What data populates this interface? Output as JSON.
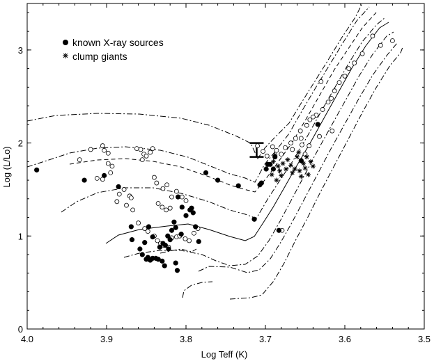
{
  "chart_data": {
    "type": "scatter",
    "title": "",
    "xlabel": "Log Teff (K)",
    "ylabel": "Log (L/Lo)",
    "xlim": [
      4.0,
      3.5
    ],
    "ylim": [
      0,
      3.5
    ],
    "x_reversed": true,
    "grid": false,
    "legend_position": "top-left",
    "xticks": [
      "4.0",
      "3.9",
      "3.8",
      "3.7",
      "3.6",
      "3.5"
    ],
    "xtick_values": [
      4.0,
      3.9,
      3.8,
      3.7,
      3.6,
      3.5
    ],
    "yticks": [
      "0",
      "1",
      "2",
      "3"
    ],
    "ytick_values": [
      0,
      1,
      2,
      3
    ],
    "legend": {
      "xray_label": "known X-ray sources",
      "clump_label": "clump giants"
    },
    "error_bar": {
      "x": 3.711,
      "y_low": 1.85,
      "y_high": 2.0
    },
    "series": [
      {
        "name": "known X-ray sources",
        "marker": "filled-circle",
        "points": [
          [
            3.988,
            1.71
          ],
          [
            3.928,
            1.6
          ],
          [
            3.885,
            1.53
          ],
          [
            3.903,
            1.65
          ],
          [
            3.869,
            1.1
          ],
          [
            3.868,
            0.96
          ],
          [
            3.858,
            0.86
          ],
          [
            3.855,
            0.8
          ],
          [
            3.852,
            0.93
          ],
          [
            3.85,
            0.75
          ],
          [
            3.848,
            0.77
          ],
          [
            3.845,
            0.74
          ],
          [
            3.842,
            0.76
          ],
          [
            3.838,
            0.76
          ],
          [
            3.835,
            0.75
          ],
          [
            3.83,
            0.73
          ],
          [
            3.833,
            0.88
          ],
          [
            3.829,
            0.92
          ],
          [
            3.826,
            0.9
          ],
          [
            3.822,
            0.86
          ],
          [
            3.827,
            0.68
          ],
          [
            3.82,
            0.96
          ],
          [
            3.823,
            1.0
          ],
          [
            3.818,
            1.06
          ],
          [
            3.815,
            1.15
          ],
          [
            3.813,
            1.09
          ],
          [
            3.813,
            0.71
          ],
          [
            3.811,
            0.63
          ],
          [
            3.81,
            1.42
          ],
          [
            3.805,
            1.31
          ],
          [
            3.806,
            1.02
          ],
          [
            3.8,
            1.22
          ],
          [
            3.795,
            1.28
          ],
          [
            3.793,
            1.3
          ],
          [
            3.791,
            1.25
          ],
          [
            3.788,
            1.1
          ],
          [
            3.784,
            0.94
          ],
          [
            3.847,
            1.1
          ],
          [
            3.842,
            0.99
          ],
          [
            3.775,
            1.68
          ],
          [
            3.76,
            1.6
          ],
          [
            3.734,
            1.54
          ],
          [
            3.714,
            1.18
          ],
          [
            3.707,
            1.55
          ],
          [
            3.705,
            1.57
          ],
          [
            3.697,
            1.77
          ],
          [
            3.699,
            1.72
          ],
          [
            3.694,
            1.77
          ],
          [
            3.69,
            1.72
          ],
          [
            3.688,
            1.85
          ],
          [
            3.683,
            1.06
          ],
          [
            3.655,
            1.81
          ],
          [
            3.634,
            2.2
          ]
        ]
      },
      {
        "name": "clump giants",
        "marker": "asterisk",
        "points": [
          [
            3.69,
            1.8
          ],
          [
            3.688,
            1.87
          ],
          [
            3.684,
            1.75
          ],
          [
            3.682,
            1.7
          ],
          [
            3.68,
            1.65
          ],
          [
            3.678,
            1.78
          ],
          [
            3.674,
            1.72
          ],
          [
            3.672,
            1.82
          ],
          [
            3.668,
            1.76
          ],
          [
            3.666,
            1.68
          ],
          [
            3.663,
            1.72
          ],
          [
            3.66,
            1.85
          ],
          [
            3.657,
            1.7
          ],
          [
            3.655,
            1.64
          ],
          [
            3.652,
            1.78
          ],
          [
            3.65,
            1.73
          ],
          [
            3.646,
            1.66
          ],
          [
            3.643,
            1.8
          ],
          [
            3.64,
            1.75
          ],
          [
            3.686,
            1.6
          ],
          [
            3.692,
            1.66
          ],
          [
            3.658,
            1.9
          ],
          [
            3.648,
            1.85
          ]
        ]
      },
      {
        "name": "",
        "marker": "open-circle",
        "points": [
          [
            3.934,
            1.82
          ],
          [
            3.92,
            1.93
          ],
          [
            3.905,
            1.97
          ],
          [
            3.903,
            1.92
          ],
          [
            3.898,
            1.89
          ],
          [
            3.912,
            1.62
          ],
          [
            3.905,
            1.61
          ],
          [
            3.898,
            1.78
          ],
          [
            3.893,
            1.75
          ],
          [
            3.895,
            1.68
          ],
          [
            3.884,
            1.45
          ],
          [
            3.878,
            1.5
          ],
          [
            3.871,
            1.43
          ],
          [
            3.869,
            1.41
          ],
          [
            3.887,
            1.37
          ],
          [
            3.862,
            1.94
          ],
          [
            3.857,
            1.93
          ],
          [
            3.853,
            1.88
          ],
          [
            3.845,
            1.9
          ],
          [
            3.842,
            1.94
          ],
          [
            3.855,
            1.82
          ],
          [
            3.85,
            1.86
          ],
          [
            3.84,
            1.63
          ],
          [
            3.837,
            1.57
          ],
          [
            3.829,
            1.51
          ],
          [
            3.824,
            1.55
          ],
          [
            3.818,
            1.42
          ],
          [
            3.812,
            1.48
          ],
          [
            3.805,
            1.42
          ],
          [
            3.8,
            1.38
          ],
          [
            3.835,
            1.35
          ],
          [
            3.83,
            1.31
          ],
          [
            3.825,
            1.28
          ],
          [
            3.82,
            1.3
          ],
          [
            3.875,
            1.33
          ],
          [
            3.867,
            1.28
          ],
          [
            3.86,
            1.14
          ],
          [
            3.852,
            1.08
          ],
          [
            3.848,
            1.05
          ],
          [
            3.84,
            1.0
          ],
          [
            3.836,
            0.95
          ],
          [
            3.832,
            0.92
          ],
          [
            3.828,
            0.9
          ],
          [
            3.822,
            0.88
          ],
          [
            3.818,
            0.98
          ],
          [
            3.812,
            0.99
          ],
          [
            3.808,
            1.0
          ],
          [
            3.801,
            0.97
          ],
          [
            3.796,
            0.95
          ],
          [
            3.79,
            1.03
          ],
          [
            3.785,
            1.08
          ],
          [
            3.71,
            1.97
          ],
          [
            3.703,
            1.91
          ],
          [
            3.698,
            1.86
          ],
          [
            3.691,
            1.96
          ],
          [
            3.686,
            1.92
          ],
          [
            3.68,
            1.88
          ],
          [
            3.675,
            1.95
          ],
          [
            3.668,
            2.0
          ],
          [
            3.662,
            2.05
          ],
          [
            3.656,
            2.13
          ],
          [
            3.648,
            2.19
          ],
          [
            3.644,
            2.25
          ],
          [
            3.636,
            2.3
          ],
          [
            3.628,
            2.36
          ],
          [
            3.621,
            2.44
          ],
          [
            3.617,
            2.48
          ],
          [
            3.613,
            2.56
          ],
          [
            3.607,
            2.65
          ],
          [
            3.6,
            2.72
          ],
          [
            3.595,
            2.8
          ],
          [
            3.588,
            2.86
          ],
          [
            3.578,
            2.96
          ],
          [
            3.565,
            3.15
          ],
          [
            3.555,
            3.05
          ],
          [
            3.54,
            3.1
          ],
          [
            3.63,
            2.66
          ],
          [
            3.64,
            2.28
          ],
          [
            3.655,
            2.05
          ],
          [
            3.666,
            1.93
          ],
          [
            3.679,
            1.06
          ],
          [
            3.654,
            1.98
          ],
          [
            3.65,
            1.88
          ],
          [
            3.645,
            1.97
          ],
          [
            3.632,
            2.07
          ],
          [
            3.616,
            2.13
          ]
        ]
      }
    ]
  }
}
